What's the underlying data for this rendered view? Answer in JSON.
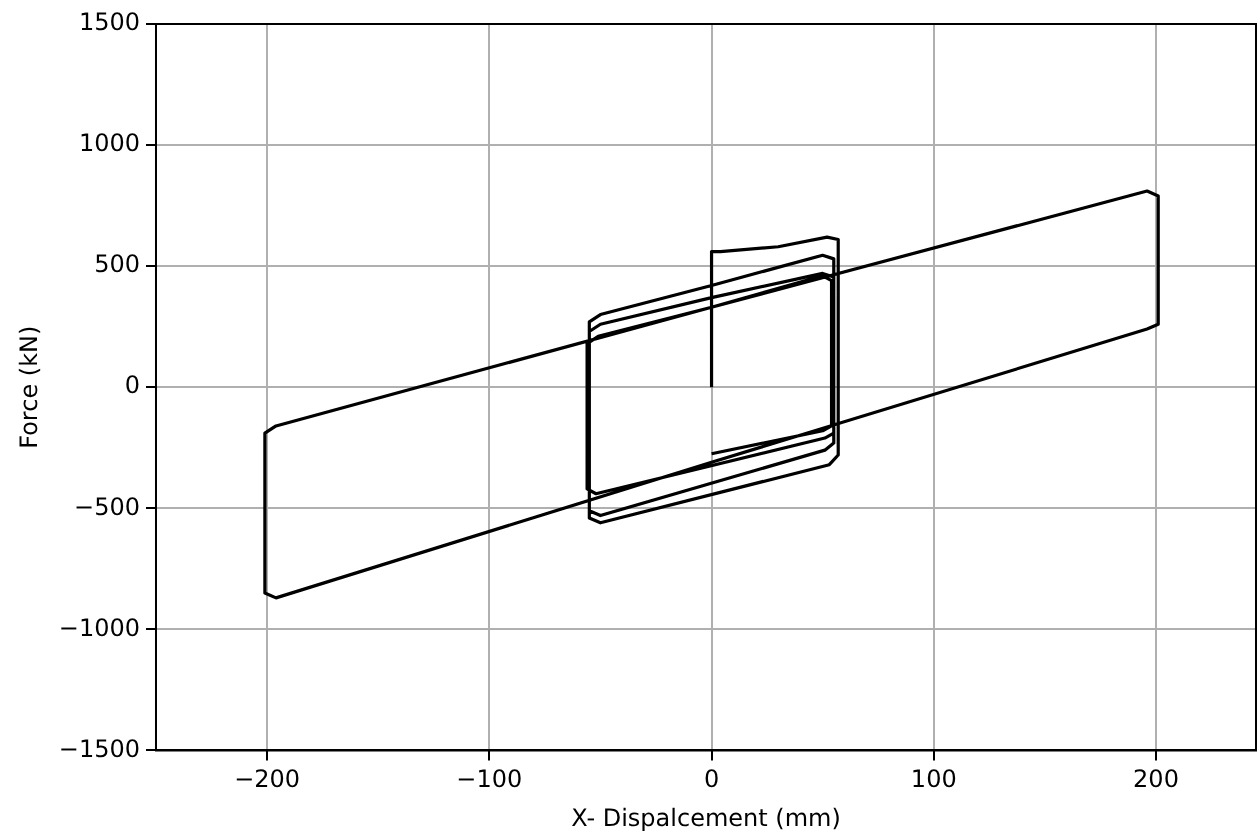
{
  "chart_data": {
    "type": "line",
    "xlabel": "X- Dispalcement (mm)",
    "ylabel": "Force (kN)",
    "xlim": [
      -250,
      245
    ],
    "ylim": [
      -1500,
      1500
    ],
    "xticks": [
      {
        "value": -200,
        "label": "−200"
      },
      {
        "value": -100,
        "label": "−100"
      },
      0,
      100,
      200
    ],
    "yticks": [
      {
        "value": -1500,
        "label": "−1500"
      },
      {
        "value": -1000,
        "label": "−1000"
      },
      {
        "value": -500,
        "label": "−500"
      },
      0,
      500,
      1000,
      1500
    ],
    "grid": true,
    "legend": false,
    "marker": "none",
    "line_style": "solid",
    "series": [
      {
        "color": "#000000",
        "x": [
          0,
          0,
          4,
          30,
          52,
          57,
          57,
          53,
          -50,
          -55,
          -55,
          -50,
          0,
          50,
          55,
          55,
          51,
          -50,
          -55,
          -55,
          -50,
          0,
          50,
          55,
          55,
          51,
          -52,
          -56,
          -56,
          -51,
          0,
          196,
          201,
          201,
          196,
          0,
          -196,
          -201,
          -201,
          -196,
          0,
          50,
          54,
          54,
          50,
          0
        ],
        "values": [
          0,
          560,
          560,
          580,
          620,
          610,
          -280,
          -320,
          -560,
          -540,
          270,
          300,
          420,
          545,
          530,
          -230,
          -260,
          -530,
          -510,
          230,
          260,
          370,
          470,
          455,
          -190,
          -210,
          -440,
          -420,
          180,
          210,
          330,
          810,
          790,
          260,
          240,
          -310,
          -870,
          -850,
          -190,
          -160,
          330,
          460,
          440,
          -160,
          -180,
          -275
        ]
      }
    ]
  }
}
